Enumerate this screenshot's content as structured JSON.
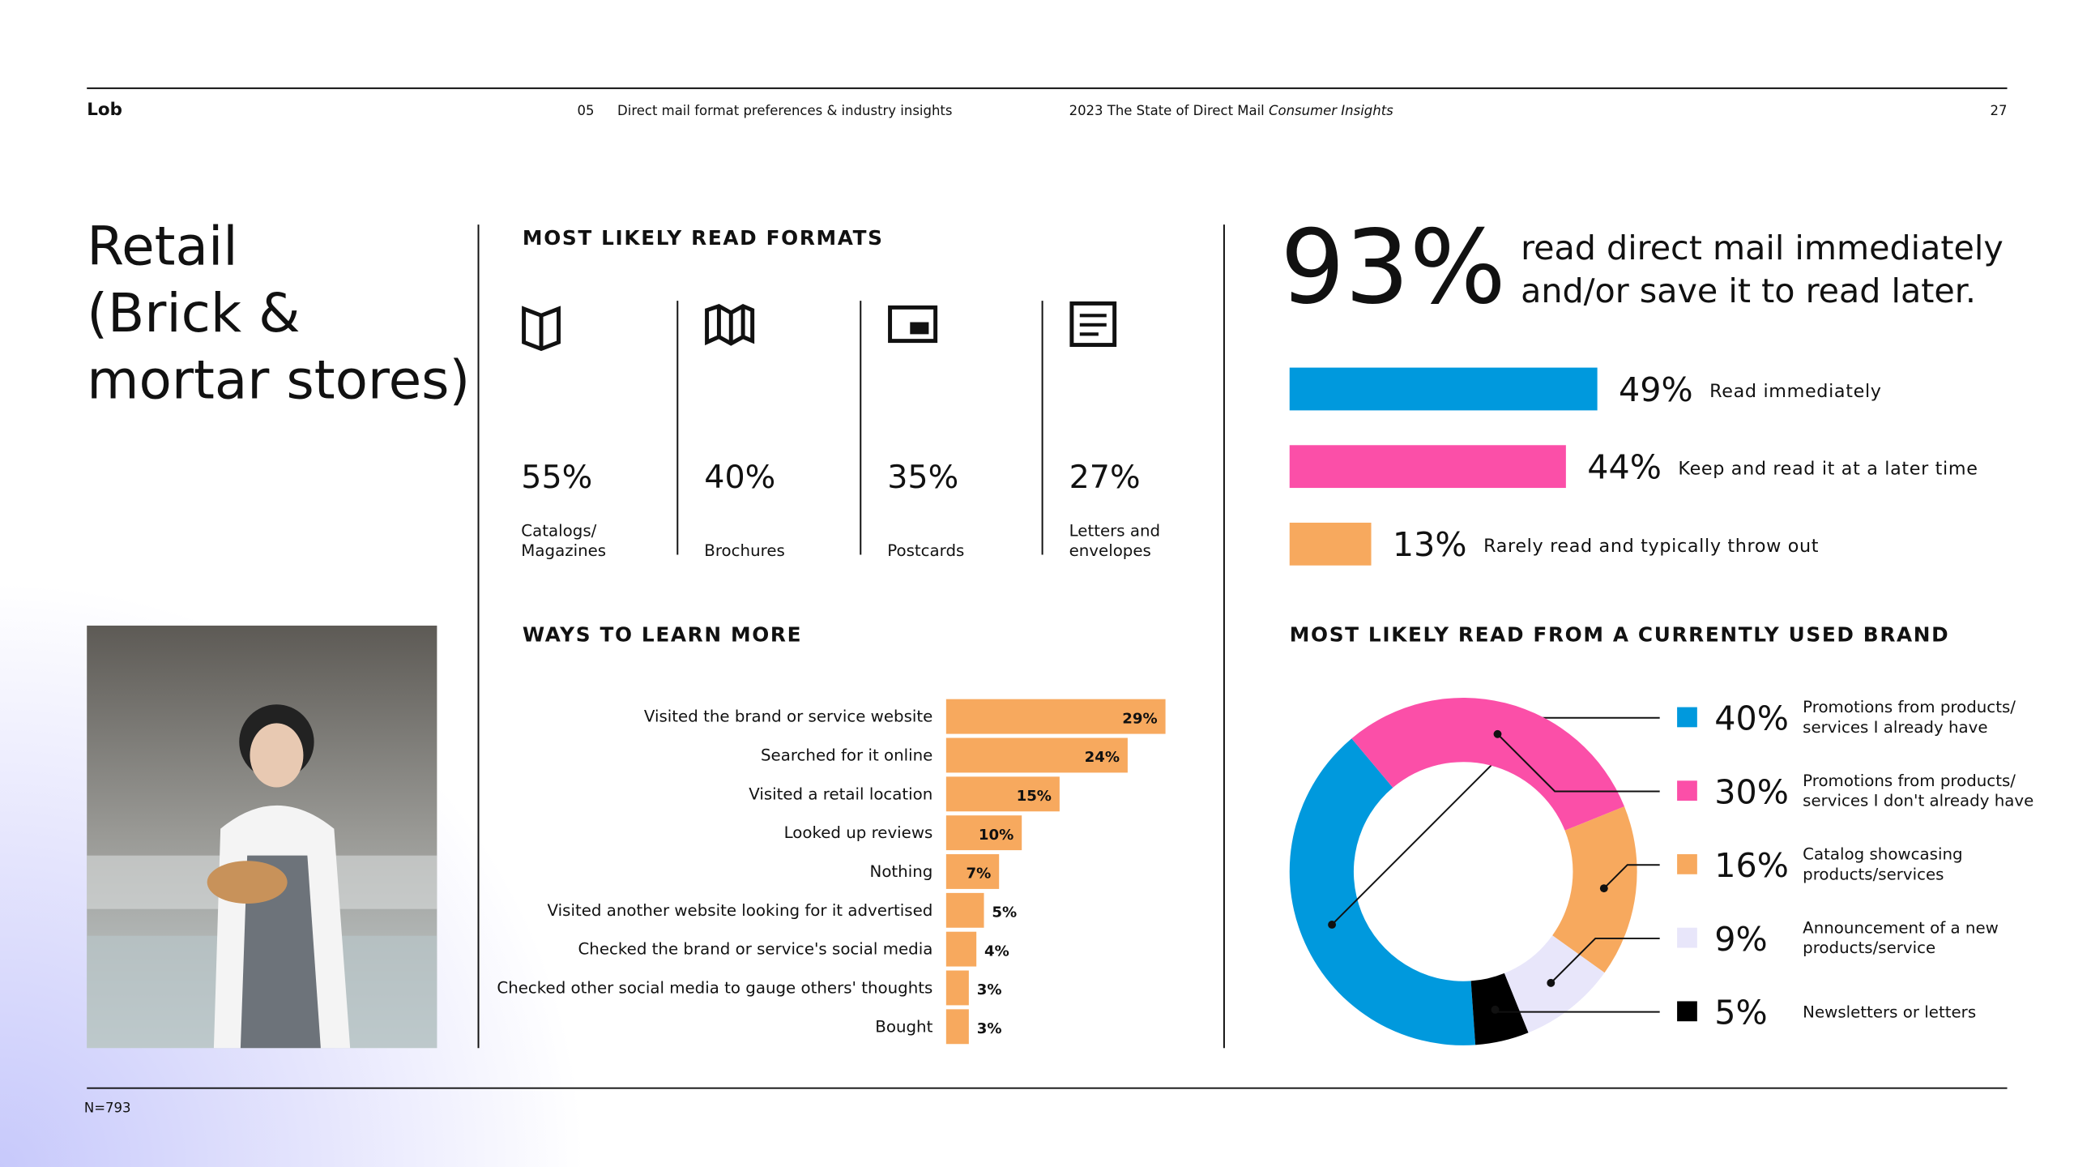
{
  "header": {
    "logo": "Lob",
    "section_number": "05",
    "section_title": "Direct mail format preferences & industry insights",
    "report_title": "2023 The State of Direct Mail",
    "report_title_italic": "Consumer Insights",
    "page_number": "27"
  },
  "sidebar": {
    "title_lines": [
      "Retail",
      "(Brick &",
      "mortar stores)"
    ]
  },
  "formats": {
    "heading": "MOST LIKELY READ FORMATS",
    "items": [
      {
        "percent": "55%",
        "label": "Catalogs/ Magazines"
      },
      {
        "percent": "40%",
        "label": "Brochures"
      },
      {
        "percent": "35%",
        "label": "Postcards"
      },
      {
        "percent": "27%",
        "label": "Letters and envelopes"
      }
    ]
  },
  "highlight": {
    "percent": "93%",
    "text_lines": [
      "read direct mail immediately",
      "and/or save it to read later."
    ]
  },
  "chart_data": [
    {
      "type": "bar",
      "orientation": "horizontal",
      "categories": [
        "Read immediately",
        "Keep and read it at a later time",
        "Rarely read and typically throw out"
      ],
      "values": [
        49,
        44,
        13
      ],
      "value_labels": [
        "49%",
        "44%",
        "13%"
      ],
      "colors": [
        "#0099dd",
        "#fb4fa8",
        "#f7a95e"
      ]
    },
    {
      "type": "bar",
      "orientation": "horizontal",
      "title": "WAYS TO LEARN MORE",
      "categories": [
        "Visited the brand or service website",
        "Searched for it online",
        "Visited a retail location",
        "Looked up reviews",
        "Nothing",
        "Visited another website looking for it advertised",
        "Checked the brand or service's social media",
        "Checked other social media to gauge others' thoughts",
        "Bought"
      ],
      "values": [
        29,
        24,
        15,
        10,
        7,
        5,
        4,
        3,
        3
      ],
      "value_labels": [
        "29%",
        "24%",
        "15%",
        "10%",
        "7%",
        "5%",
        "4%",
        "3%",
        "3%"
      ],
      "color": "#f7a95e"
    },
    {
      "type": "donut",
      "title": "MOST LIKELY READ FROM A CURRENTLY USED BRAND",
      "categories": [
        "Promotions from products/ services I already have",
        "Promotions from products/ services I don't already have",
        "Catalog showcasing products/services",
        "Announcement of a new products/service",
        "Newsletters or letters"
      ],
      "values": [
        40,
        30,
        16,
        9,
        5
      ],
      "value_labels": [
        "40%",
        "30%",
        "16%",
        "9%",
        "5%"
      ],
      "colors": [
        "#0099dd",
        "#fb4fa8",
        "#f7a95e",
        "#e8e6fa",
        "#000000"
      ]
    }
  ],
  "footer": {
    "note": "N=793"
  }
}
